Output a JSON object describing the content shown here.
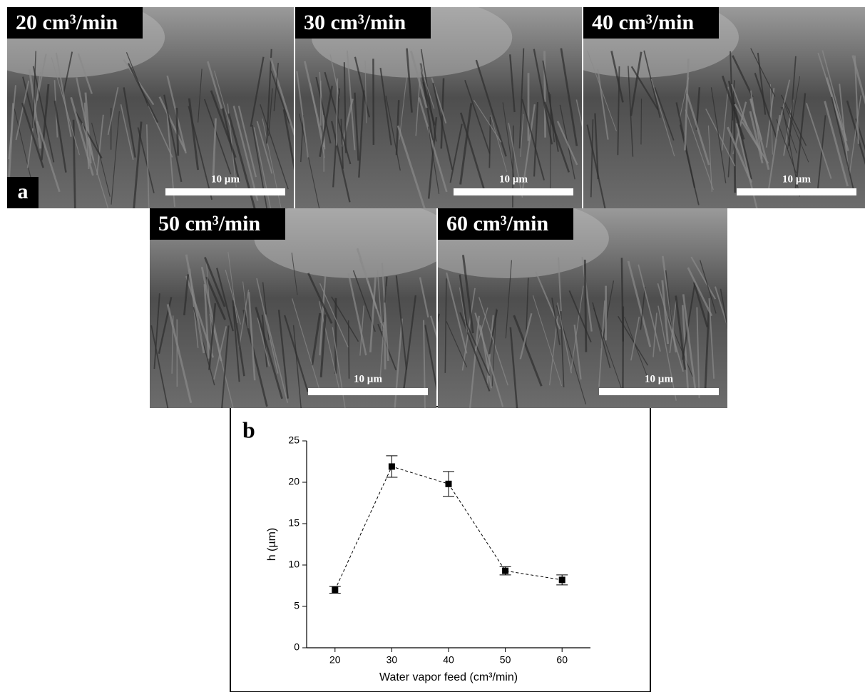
{
  "figure": {
    "label_a": "a",
    "label_b": "b"
  },
  "panels": [
    {
      "label": "20 cm³/min",
      "scale_bar": "10 µm"
    },
    {
      "label": "30 cm³/min",
      "scale_bar": "10 µm"
    },
    {
      "label": "40 cm³/min",
      "scale_bar": "10 µm"
    },
    {
      "label": "50 cm³/min",
      "scale_bar": "10 µm"
    },
    {
      "label": "60 cm³/min",
      "scale_bar": "10 µm"
    }
  ],
  "chart_data": {
    "type": "scatter",
    "x_label": "Water vapor feed (cm³/min)",
    "y_label": "h (µm)",
    "x": [
      20,
      30,
      40,
      50,
      60
    ],
    "values": [
      7.0,
      21.9,
      19.8,
      9.3,
      8.2
    ],
    "errors": [
      0.4,
      1.3,
      1.5,
      0.5,
      0.6
    ],
    "color": "#000000",
    "xlim": [
      15,
      65
    ],
    "xticks": [
      20,
      30,
      40,
      50,
      60
    ],
    "ylim": [
      0,
      25
    ],
    "yticks": [
      0,
      5,
      10,
      15,
      20,
      25
    ]
  }
}
